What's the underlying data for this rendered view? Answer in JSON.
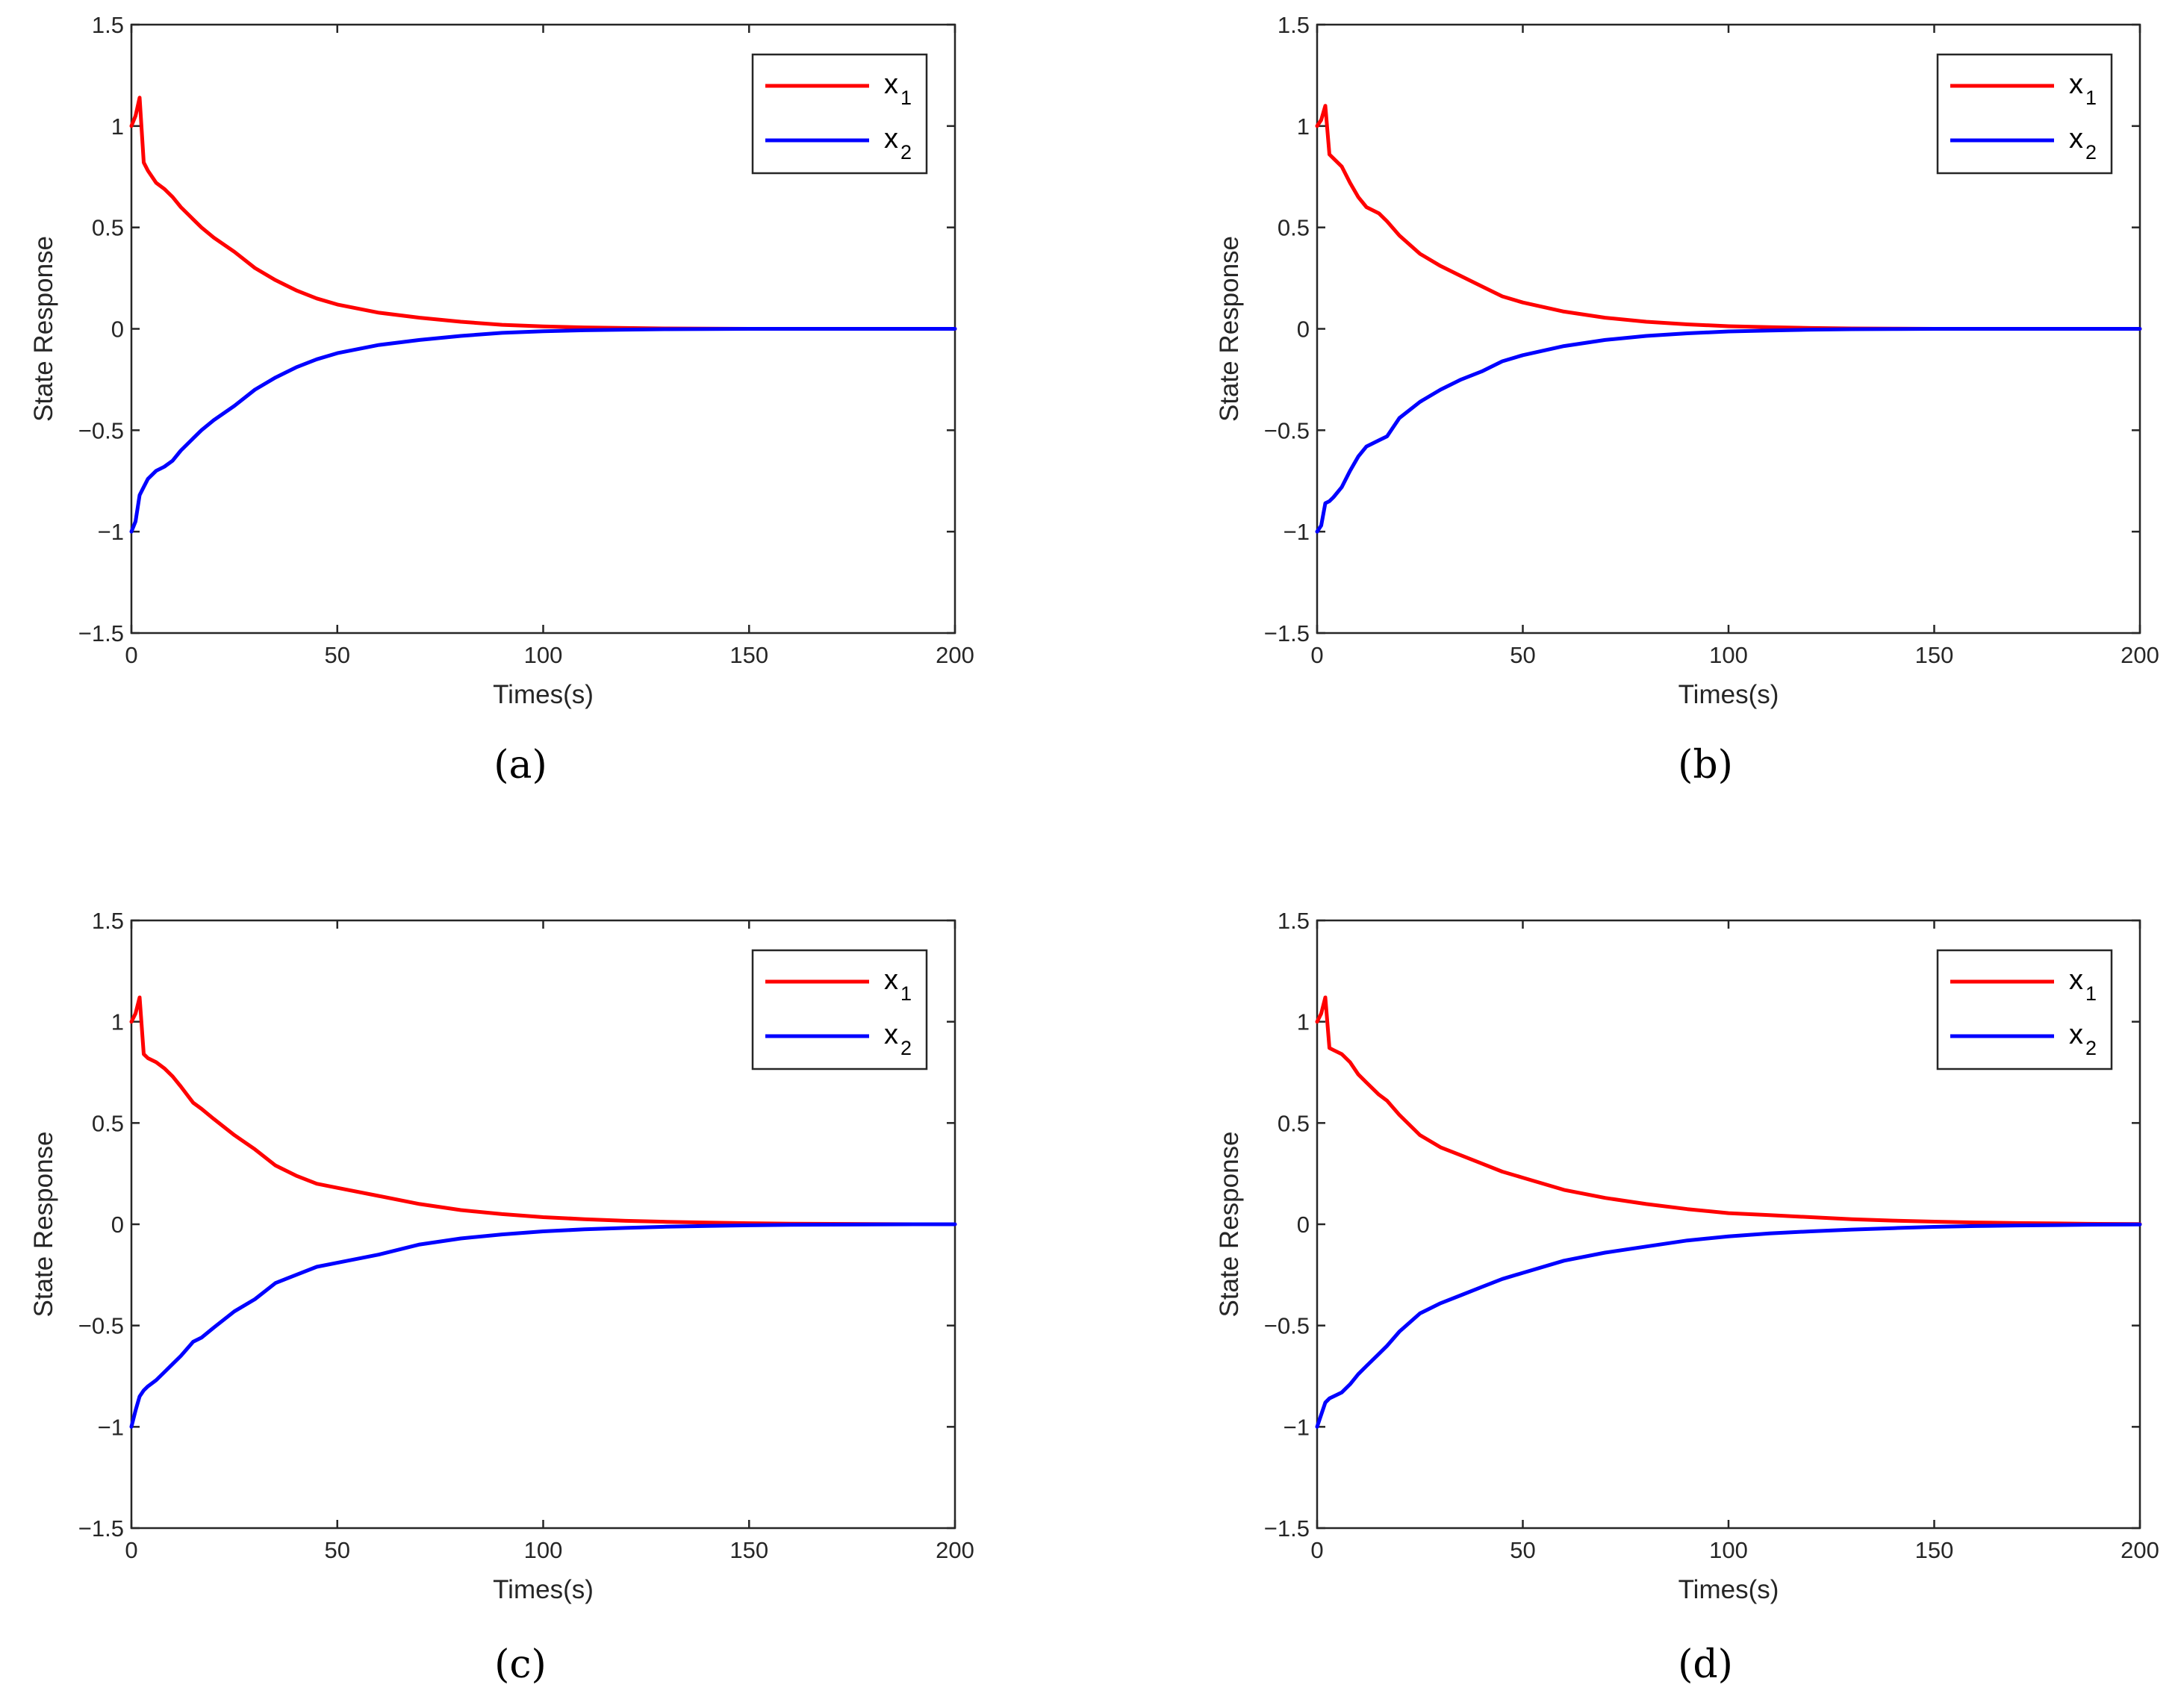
{
  "chart_data": [
    {
      "caption": "(a)",
      "type": "line",
      "xlabel": "Times(s)",
      "ylabel": "State Response",
      "xlim": [
        0,
        200
      ],
      "ylim": [
        -1.5,
        1.5
      ],
      "xticks": [
        "0",
        "50",
        "100",
        "150",
        "200"
      ],
      "yticks": [
        "−1.5",
        "−1",
        "−0.5",
        "0",
        "0.5",
        "1",
        "1.5"
      ],
      "legend_position": "top-right",
      "series": [
        {
          "name": "x",
          "subscript": "1",
          "color": "#ff0000",
          "x": [
            0,
            1,
            2,
            3,
            4,
            6,
            8,
            10,
            12,
            15,
            17,
            20,
            25,
            30,
            35,
            40,
            45,
            50,
            60,
            70,
            80,
            90,
            100,
            110,
            120,
            130,
            140,
            150,
            160,
            170,
            180,
            190,
            200
          ],
          "y": [
            1.0,
            1.05,
            1.14,
            0.82,
            0.78,
            0.72,
            0.69,
            0.65,
            0.6,
            0.54,
            0.5,
            0.45,
            0.38,
            0.3,
            0.24,
            0.19,
            0.15,
            0.12,
            0.08,
            0.055,
            0.035,
            0.02,
            0.012,
            0.007,
            0.004,
            0.002,
            0.001,
            0.0,
            0.0,
            0.0,
            0.0,
            0.0,
            0.0
          ]
        },
        {
          "name": "x",
          "subscript": "2",
          "color": "#0000ff",
          "x": [
            0,
            1,
            2,
            3,
            4,
            6,
            8,
            10,
            12,
            15,
            17,
            20,
            25,
            30,
            35,
            40,
            45,
            50,
            60,
            70,
            80,
            90,
            100,
            110,
            120,
            130,
            140,
            150,
            160,
            170,
            180,
            190,
            200
          ],
          "y": [
            -1.0,
            -0.95,
            -0.82,
            -0.78,
            -0.74,
            -0.7,
            -0.68,
            -0.65,
            -0.6,
            -0.54,
            -0.5,
            -0.45,
            -0.38,
            -0.3,
            -0.24,
            -0.19,
            -0.15,
            -0.12,
            -0.08,
            -0.055,
            -0.035,
            -0.02,
            -0.012,
            -0.007,
            -0.004,
            -0.002,
            -0.001,
            0.0,
            0.0,
            0.0,
            0.0,
            0.0,
            0.0
          ]
        }
      ]
    },
    {
      "caption": "(b)",
      "type": "line",
      "xlabel": "Times(s)",
      "ylabel": "State Response",
      "xlim": [
        0,
        200
      ],
      "ylim": [
        -1.5,
        1.5
      ],
      "xticks": [
        "0",
        "50",
        "100",
        "150",
        "200"
      ],
      "yticks": [
        "−1.5",
        "−1",
        "−0.5",
        "0",
        "0.5",
        "1",
        "1.5"
      ],
      "legend_position": "top-right",
      "series": [
        {
          "name": "x",
          "subscript": "1",
          "color": "#ff0000",
          "x": [
            0,
            1,
            2,
            3,
            4,
            6,
            8,
            10,
            12,
            15,
            17,
            20,
            25,
            30,
            35,
            40,
            45,
            50,
            60,
            70,
            80,
            90,
            100,
            110,
            120,
            130,
            140,
            150,
            160,
            170,
            180,
            190,
            200
          ],
          "y": [
            1.0,
            1.03,
            1.1,
            0.86,
            0.84,
            0.8,
            0.72,
            0.65,
            0.6,
            0.57,
            0.53,
            0.46,
            0.37,
            0.31,
            0.26,
            0.21,
            0.16,
            0.13,
            0.085,
            0.055,
            0.035,
            0.022,
            0.013,
            0.008,
            0.004,
            0.002,
            0.001,
            0.0,
            0.0,
            0.0,
            0.0,
            0.0,
            0.0
          ]
        },
        {
          "name": "x",
          "subscript": "2",
          "color": "#0000ff",
          "x": [
            0,
            1,
            2,
            3,
            4,
            6,
            8,
            10,
            12,
            15,
            17,
            20,
            25,
            30,
            35,
            40,
            45,
            50,
            60,
            70,
            80,
            90,
            100,
            110,
            120,
            130,
            140,
            150,
            160,
            170,
            180,
            190,
            200
          ],
          "y": [
            -1.0,
            -0.97,
            -0.86,
            -0.85,
            -0.83,
            -0.78,
            -0.7,
            -0.63,
            -0.58,
            -0.55,
            -0.53,
            -0.44,
            -0.36,
            -0.3,
            -0.25,
            -0.21,
            -0.16,
            -0.13,
            -0.085,
            -0.055,
            -0.035,
            -0.022,
            -0.013,
            -0.008,
            -0.004,
            -0.002,
            -0.001,
            0.0,
            0.0,
            0.0,
            0.0,
            0.0,
            0.0
          ]
        }
      ]
    },
    {
      "caption": "(c)",
      "type": "line",
      "xlabel": "Times(s)",
      "ylabel": "State Response",
      "xlim": [
        0,
        200
      ],
      "ylim": [
        -1.5,
        1.5
      ],
      "xticks": [
        "0",
        "50",
        "100",
        "150",
        "200"
      ],
      "yticks": [
        "−1.5",
        "−1",
        "−0.5",
        "0",
        "0.5",
        "1",
        "1.5"
      ],
      "legend_position": "top-right",
      "series": [
        {
          "name": "x",
          "subscript": "1",
          "color": "#ff0000",
          "x": [
            0,
            1,
            2,
            3,
            4,
            6,
            8,
            10,
            12,
            15,
            17,
            20,
            25,
            30,
            35,
            40,
            45,
            50,
            60,
            70,
            80,
            90,
            100,
            110,
            120,
            130,
            140,
            150,
            160,
            170,
            180,
            190,
            200
          ],
          "y": [
            1.0,
            1.04,
            1.12,
            0.84,
            0.82,
            0.8,
            0.77,
            0.73,
            0.68,
            0.6,
            0.57,
            0.52,
            0.44,
            0.37,
            0.29,
            0.24,
            0.2,
            0.18,
            0.14,
            0.1,
            0.07,
            0.05,
            0.035,
            0.025,
            0.017,
            0.012,
            0.008,
            0.005,
            0.003,
            0.002,
            0.001,
            0.0,
            0.0
          ]
        },
        {
          "name": "x",
          "subscript": "2",
          "color": "#0000ff",
          "x": [
            0,
            1,
            2,
            3,
            4,
            6,
            8,
            10,
            12,
            15,
            17,
            20,
            25,
            30,
            35,
            40,
            45,
            50,
            60,
            70,
            80,
            90,
            100,
            110,
            120,
            130,
            140,
            150,
            160,
            170,
            180,
            190,
            200
          ],
          "y": [
            -1.0,
            -0.92,
            -0.85,
            -0.82,
            -0.8,
            -0.77,
            -0.73,
            -0.69,
            -0.65,
            -0.58,
            -0.56,
            -0.51,
            -0.43,
            -0.37,
            -0.29,
            -0.25,
            -0.21,
            -0.19,
            -0.15,
            -0.1,
            -0.07,
            -0.05,
            -0.035,
            -0.025,
            -0.018,
            -0.012,
            -0.008,
            -0.005,
            -0.003,
            -0.002,
            -0.001,
            0.0,
            0.0
          ]
        }
      ]
    },
    {
      "caption": "(d)",
      "type": "line",
      "xlabel": "Times(s)",
      "ylabel": "State Response",
      "xlim": [
        0,
        200
      ],
      "ylim": [
        -1.5,
        1.5
      ],
      "xticks": [
        "0",
        "50",
        "100",
        "150",
        "200"
      ],
      "yticks": [
        "−1.5",
        "−1",
        "−0.5",
        "0",
        "0.5",
        "1",
        "1.5"
      ],
      "legend_position": "top-right",
      "series": [
        {
          "name": "x",
          "subscript": "1",
          "color": "#ff0000",
          "x": [
            0,
            1,
            2,
            3,
            4,
            6,
            8,
            10,
            12,
            15,
            17,
            20,
            25,
            30,
            35,
            40,
            45,
            50,
            60,
            70,
            80,
            90,
            100,
            110,
            120,
            130,
            140,
            150,
            160,
            170,
            180,
            190,
            200
          ],
          "y": [
            1.0,
            1.04,
            1.12,
            0.87,
            0.86,
            0.84,
            0.8,
            0.74,
            0.7,
            0.64,
            0.61,
            0.54,
            0.44,
            0.38,
            0.34,
            0.3,
            0.26,
            0.23,
            0.17,
            0.13,
            0.1,
            0.075,
            0.055,
            0.045,
            0.035,
            0.025,
            0.018,
            0.013,
            0.009,
            0.006,
            0.004,
            0.002,
            0.001
          ]
        },
        {
          "name": "x",
          "subscript": "2",
          "color": "#0000ff",
          "x": [
            0,
            1,
            2,
            3,
            4,
            6,
            8,
            10,
            12,
            15,
            17,
            20,
            25,
            30,
            35,
            40,
            45,
            50,
            60,
            70,
            80,
            90,
            100,
            110,
            120,
            130,
            140,
            150,
            160,
            170,
            180,
            190,
            200
          ],
          "y": [
            -1.0,
            -0.94,
            -0.88,
            -0.86,
            -0.85,
            -0.83,
            -0.79,
            -0.74,
            -0.7,
            -0.64,
            -0.6,
            -0.53,
            -0.44,
            -0.39,
            -0.35,
            -0.31,
            -0.27,
            -0.24,
            -0.18,
            -0.14,
            -0.11,
            -0.08,
            -0.06,
            -0.045,
            -0.035,
            -0.026,
            -0.019,
            -0.013,
            -0.009,
            -0.006,
            -0.004,
            -0.002,
            -0.001
          ]
        }
      ]
    }
  ]
}
